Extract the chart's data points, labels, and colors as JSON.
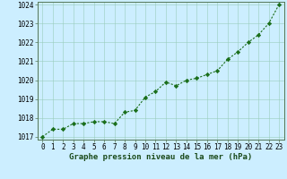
{
  "x": [
    0,
    1,
    2,
    3,
    4,
    5,
    6,
    7,
    8,
    9,
    10,
    11,
    12,
    13,
    14,
    15,
    16,
    17,
    18,
    19,
    20,
    21,
    22,
    23
  ],
  "y": [
    1017.0,
    1017.4,
    1017.4,
    1017.7,
    1017.7,
    1017.8,
    1017.8,
    1017.7,
    1018.3,
    1018.4,
    1019.1,
    1019.4,
    1019.9,
    1019.7,
    1020.0,
    1020.1,
    1020.3,
    1020.5,
    1021.1,
    1021.5,
    1022.0,
    1022.4,
    1023.0,
    1024.0
  ],
  "line_color": "#1a6e1a",
  "marker": "D",
  "marker_size": 2.2,
  "background_color": "#cceeff",
  "grid_color": "#99ccbb",
  "ylim": [
    1017,
    1024
  ],
  "xlim": [
    -0.5,
    23.5
  ],
  "yticks": [
    1017,
    1018,
    1019,
    1020,
    1021,
    1022,
    1023,
    1024
  ],
  "xticks": [
    0,
    1,
    2,
    3,
    4,
    5,
    6,
    7,
    8,
    9,
    10,
    11,
    12,
    13,
    14,
    15,
    16,
    17,
    18,
    19,
    20,
    21,
    22,
    23
  ],
  "xlabel": "Graphe pression niveau de la mer (hPa)",
  "xlabel_fontsize": 6.5,
  "tick_fontsize": 5.5,
  "line_width": 0.8
}
